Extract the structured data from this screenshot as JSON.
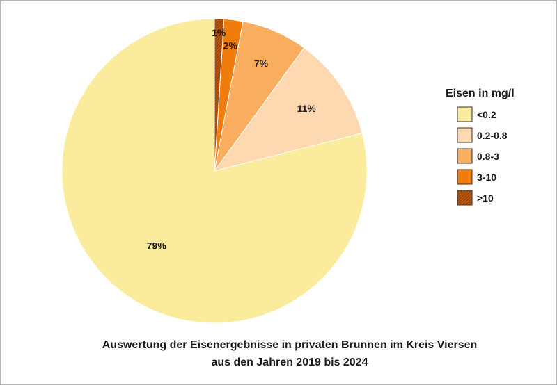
{
  "chart_data": {
    "type": "pie",
    "legend_title": "Eisen in mg/l",
    "legend_position": "right",
    "caption_lines": [
      "Auswertung der Eisenergebnisse in privaten Brunnen im Kreis Viersen",
      "aus den Jahren 2019 bis 2024"
    ],
    "slices": [
      {
        "label": "<0.2",
        "value": 79,
        "value_label": "79%",
        "color": "#fbeb9c"
      },
      {
        "label": "0.2-0.8",
        "value": 11,
        "value_label": "11%",
        "color": "#fdd8b0"
      },
      {
        "label": "0.8-3",
        "value": 7,
        "value_label": "7%",
        "color": "#f9ad5e"
      },
      {
        "label": "3-10",
        "value": 2,
        "value_label": "2%",
        "color": "#f07c0c"
      },
      {
        "label": ">10",
        "value": 1,
        "value_label": "1%",
        "color": "#b8560b"
      }
    ]
  }
}
